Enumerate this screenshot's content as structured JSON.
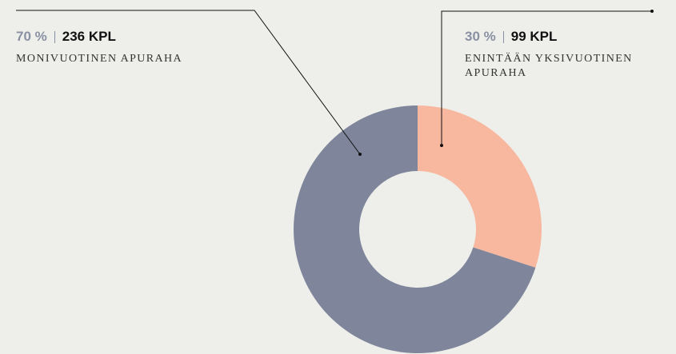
{
  "chart_data": {
    "type": "donut",
    "categories": [
      "MONIVUOTINEN APURAHA",
      "ENINTÄÄN YKSIVUOTINEN APURAHA"
    ],
    "values": [
      70,
      30
    ],
    "value_labels": [
      "70 %",
      "30 %"
    ],
    "counts": [
      236,
      99
    ],
    "count_labels": [
      "236 KPL",
      "99 KPL"
    ],
    "colors": [
      "#7f869b",
      "#f8b8a0"
    ]
  }
}
